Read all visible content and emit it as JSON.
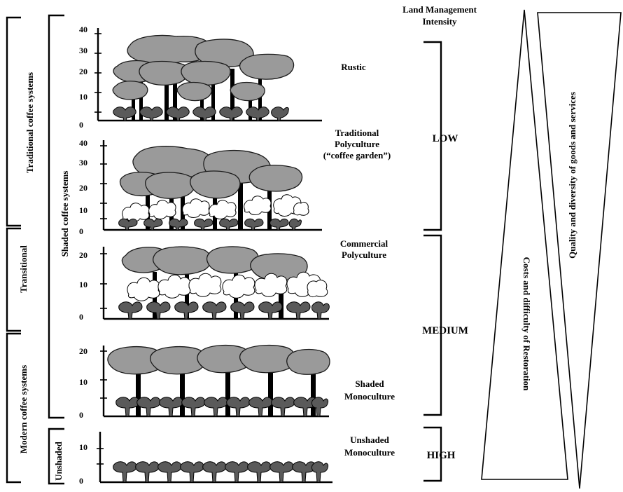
{
  "header": {
    "intensity_title_1": "Land Management",
    "intensity_title_2": "Intensity"
  },
  "left_labels": {
    "traditional": "Traditional coffee systems",
    "transitional": "Transitional",
    "modern": "Modern coffee systems",
    "shaded": "Shaded coffee systems",
    "unshaded": "Unshaded"
  },
  "panels": [
    {
      "id": "rustic",
      "label_lines": [
        "Rustic"
      ],
      "ticks": [
        "40",
        "30",
        "20",
        "10",
        "0"
      ]
    },
    {
      "id": "traditional-polyculture",
      "label_lines": [
        "Traditional",
        "Polyculture",
        "(“coffee garden”)"
      ],
      "ticks": [
        "40",
        "30",
        "20",
        "10",
        "0"
      ]
    },
    {
      "id": "commercial-polyculture",
      "label_lines": [
        "Commercial",
        "Polyculture"
      ],
      "ticks": [
        "20",
        "10",
        "0"
      ]
    },
    {
      "id": "shaded-monoculture",
      "label_lines": [
        "Shaded",
        "Monoculture"
      ],
      "ticks": [
        "20",
        "10",
        "0"
      ]
    },
    {
      "id": "unshaded-monoculture",
      "label_lines": [
        "Unshaded",
        "Monoculture"
      ],
      "ticks": [
        "10",
        "0"
      ]
    }
  ],
  "intensity_levels": {
    "low": "LOW",
    "medium": "MEDIUM",
    "high": "HIGH"
  },
  "triangles": {
    "costs": "Costs and difficulty of Restoration",
    "quality": "Quality and diversity of goods and services"
  }
}
